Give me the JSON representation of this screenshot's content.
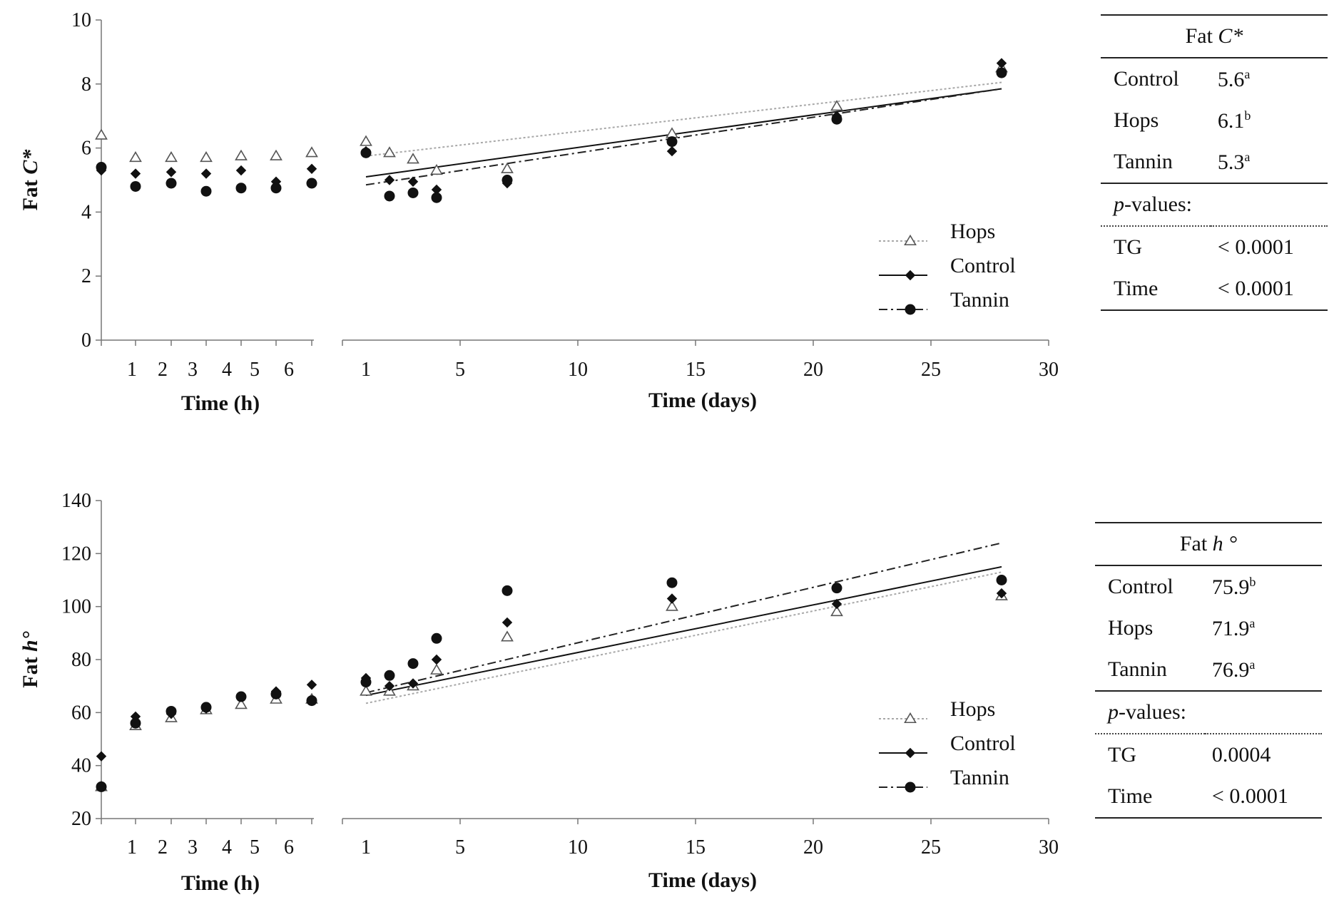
{
  "chart_data": [
    {
      "id": "chroma",
      "type": "scatter",
      "ylabel_prefix": "Fat ",
      "ylabel_var": "C*",
      "ylim": [
        0,
        10
      ],
      "yticks": [
        "0",
        "2",
        "4",
        "6",
        "8",
        "10"
      ],
      "left_panel": {
        "xlabel": "Time (h)",
        "xticks": [
          "1",
          "2",
          "3",
          "4",
          "5",
          "6"
        ],
        "series": [
          {
            "name": "Hops",
            "x": [
              0,
              1,
              2,
              3,
              4,
              5,
              6
            ],
            "y": [
              6.4,
              5.7,
              5.7,
              5.7,
              5.75,
              5.75,
              5.85
            ]
          },
          {
            "name": "Control",
            "x": [
              0,
              1,
              2,
              3,
              4,
              5,
              6
            ],
            "y": [
              5.3,
              5.2,
              5.25,
              5.2,
              5.3,
              4.95,
              5.35
            ]
          },
          {
            "name": "Tannin",
            "x": [
              0,
              1,
              2,
              3,
              4,
              5,
              6
            ],
            "y": [
              5.4,
              4.8,
              4.9,
              4.65,
              4.75,
              4.75,
              4.9
            ]
          }
        ]
      },
      "right_panel": {
        "xlabel": "Time (days)",
        "xticks": [
          "1",
          "5",
          "10",
          "15",
          "20",
          "25",
          "30"
        ],
        "series": [
          {
            "name": "Hops",
            "x": [
              1,
              2,
              3,
              4,
              7,
              14,
              21,
              28
            ],
            "y": [
              6.2,
              5.85,
              5.65,
              5.3,
              5.35,
              6.45,
              7.3,
              8.5
            ]
          },
          {
            "name": "Control",
            "x": [
              1,
              2,
              3,
              4,
              7,
              14,
              21,
              28
            ],
            "y": [
              5.9,
              5.0,
              4.95,
              4.7,
              4.9,
              5.9,
              7.0,
              8.65
            ]
          },
          {
            "name": "Tannin",
            "x": [
              1,
              2,
              3,
              4,
              7,
              14,
              21,
              28
            ],
            "y": [
              5.85,
              4.5,
              4.6,
              4.45,
              5.0,
              6.2,
              6.9,
              8.35
            ]
          }
        ],
        "trendlines": [
          {
            "name": "Hops",
            "x": [
              1,
              28
            ],
            "y": [
              5.75,
              8.05
            ]
          },
          {
            "name": "Control",
            "x": [
              1,
              28
            ],
            "y": [
              5.1,
              7.85
            ]
          },
          {
            "name": "Tannin",
            "x": [
              1,
              28
            ],
            "y": [
              4.85,
              7.85
            ]
          }
        ]
      },
      "legend": [
        "Hops",
        "Control",
        "Tannin"
      ],
      "table": {
        "title_prefix": "Fat ",
        "title_var": "C*",
        "rows": [
          {
            "label": "Control",
            "value": "5.6",
            "sup": "a"
          },
          {
            "label": "Hops",
            "value": "6.1",
            "sup": "b"
          },
          {
            "label": "Tannin",
            "value": "5.3",
            "sup": "a"
          }
        ],
        "pvalues_label_var": "p",
        "pvalues_label_rest": "-values:",
        "pvalues": [
          {
            "label": "TG",
            "value": "< 0.0001"
          },
          {
            "label": "Time",
            "value": "< 0.0001"
          }
        ]
      }
    },
    {
      "id": "hue",
      "type": "scatter",
      "ylabel_prefix": "Fat ",
      "ylabel_var": "h°",
      "ylim": [
        20,
        140
      ],
      "yticks": [
        "20",
        "40",
        "60",
        "80",
        "100",
        "120",
        "140"
      ],
      "left_panel": {
        "xlabel": "Time (h)",
        "xticks": [
          "1",
          "2",
          "3",
          "4",
          "5",
          "6"
        ],
        "series": [
          {
            "name": "Hops",
            "x": [
              0,
              1,
              2,
              3,
              4,
              5,
              6
            ],
            "y": [
              32,
              55,
              58,
              61,
              63,
              65,
              65
            ]
          },
          {
            "name": "Control",
            "x": [
              0,
              1,
              2,
              3,
              4,
              5,
              6
            ],
            "y": [
              43.5,
              58.5,
              59.5,
              61.5,
              66,
              68,
              70.5
            ]
          },
          {
            "name": "Tannin",
            "x": [
              0,
              1,
              2,
              3,
              4,
              5,
              6
            ],
            "y": [
              32,
              56,
              60.5,
              62,
              66,
              67,
              64.5
            ]
          }
        ]
      },
      "right_panel": {
        "xlabel": "Time (days)",
        "xticks": [
          "1",
          "5",
          "10",
          "15",
          "20",
          "25",
          "30"
        ],
        "series": [
          {
            "name": "Hops",
            "x": [
              1,
              2,
              3,
              4,
              7,
              14,
              21,
              28
            ],
            "y": [
              68,
              68,
              70,
              76,
              88.5,
              100,
              98,
              104
            ]
          },
          {
            "name": "Control",
            "x": [
              1,
              2,
              3,
              4,
              7,
              14,
              21,
              28
            ],
            "y": [
              73,
              70,
              71,
              80,
              94,
              103,
              101,
              105
            ]
          },
          {
            "name": "Tannin",
            "x": [
              1,
              2,
              3,
              4,
              7,
              14,
              21,
              28
            ],
            "y": [
              71.5,
              74,
              78.5,
              88,
              106,
              109,
              107,
              110
            ]
          }
        ],
        "trendlines": [
          {
            "name": "Hops",
            "x": [
              1,
              28
            ],
            "y": [
              63.5,
              113
            ]
          },
          {
            "name": "Control",
            "x": [
              1,
              28
            ],
            "y": [
              66.5,
              115
            ]
          },
          {
            "name": "Tannin",
            "x": [
              1,
              28
            ],
            "y": [
              67.5,
              124
            ]
          }
        ]
      },
      "legend": [
        "Hops",
        "Control",
        "Tannin"
      ],
      "table": {
        "title_prefix": "Fat ",
        "title_var": "h °",
        "rows": [
          {
            "label": "Control",
            "value": "75.9",
            "sup": "b"
          },
          {
            "label": "Hops",
            "value": "71.9",
            "sup": "a"
          },
          {
            "label": "Tannin",
            "value": "76.9",
            "sup": "a"
          }
        ],
        "pvalues_label_var": "p",
        "pvalues_label_rest": "-values:",
        "pvalues": [
          {
            "label": "TG",
            "value": "0.0004"
          },
          {
            "label": "Time",
            "value": "< 0.0001"
          }
        ]
      }
    }
  ]
}
